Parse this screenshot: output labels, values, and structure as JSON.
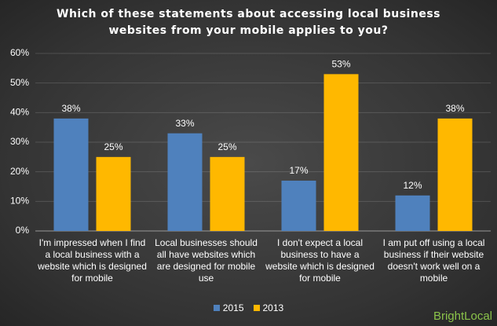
{
  "chart_data": {
    "type": "bar",
    "title": "Which of these statements about accessing local business websites from your mobile applies to you?",
    "categories": [
      "I'm impressed when I find a local business with a website which is designed for mobile",
      "Local businesses should all have websites which are designed for mobile use",
      "I don't expect a local business to have a website which is designed for mobile",
      "I am put off using a local business if their website doesn't work well on a mobile"
    ],
    "series": [
      {
        "name": "2015",
        "color": "#4f81bd",
        "values": [
          38,
          33,
          17,
          12
        ],
        "value_labels": [
          "38%",
          "33%",
          "17%",
          "12%"
        ]
      },
      {
        "name": "2013",
        "color": "#ffb800",
        "values": [
          25,
          25,
          53,
          38
        ],
        "value_labels": [
          "25%",
          "25%",
          "53%",
          "38%"
        ]
      }
    ],
    "ylim": [
      0,
      60
    ],
    "yticks": [
      {
        "value": 0,
        "label": "0%"
      },
      {
        "value": 10,
        "label": "10%"
      },
      {
        "value": 20,
        "label": "20%"
      },
      {
        "value": 30,
        "label": "30%"
      },
      {
        "value": 40,
        "label": "40%"
      },
      {
        "value": 50,
        "label": "50%"
      },
      {
        "value": 60,
        "label": "60%"
      }
    ],
    "grid": true,
    "legend": "bottom",
    "watermark": "BrightLocal"
  }
}
